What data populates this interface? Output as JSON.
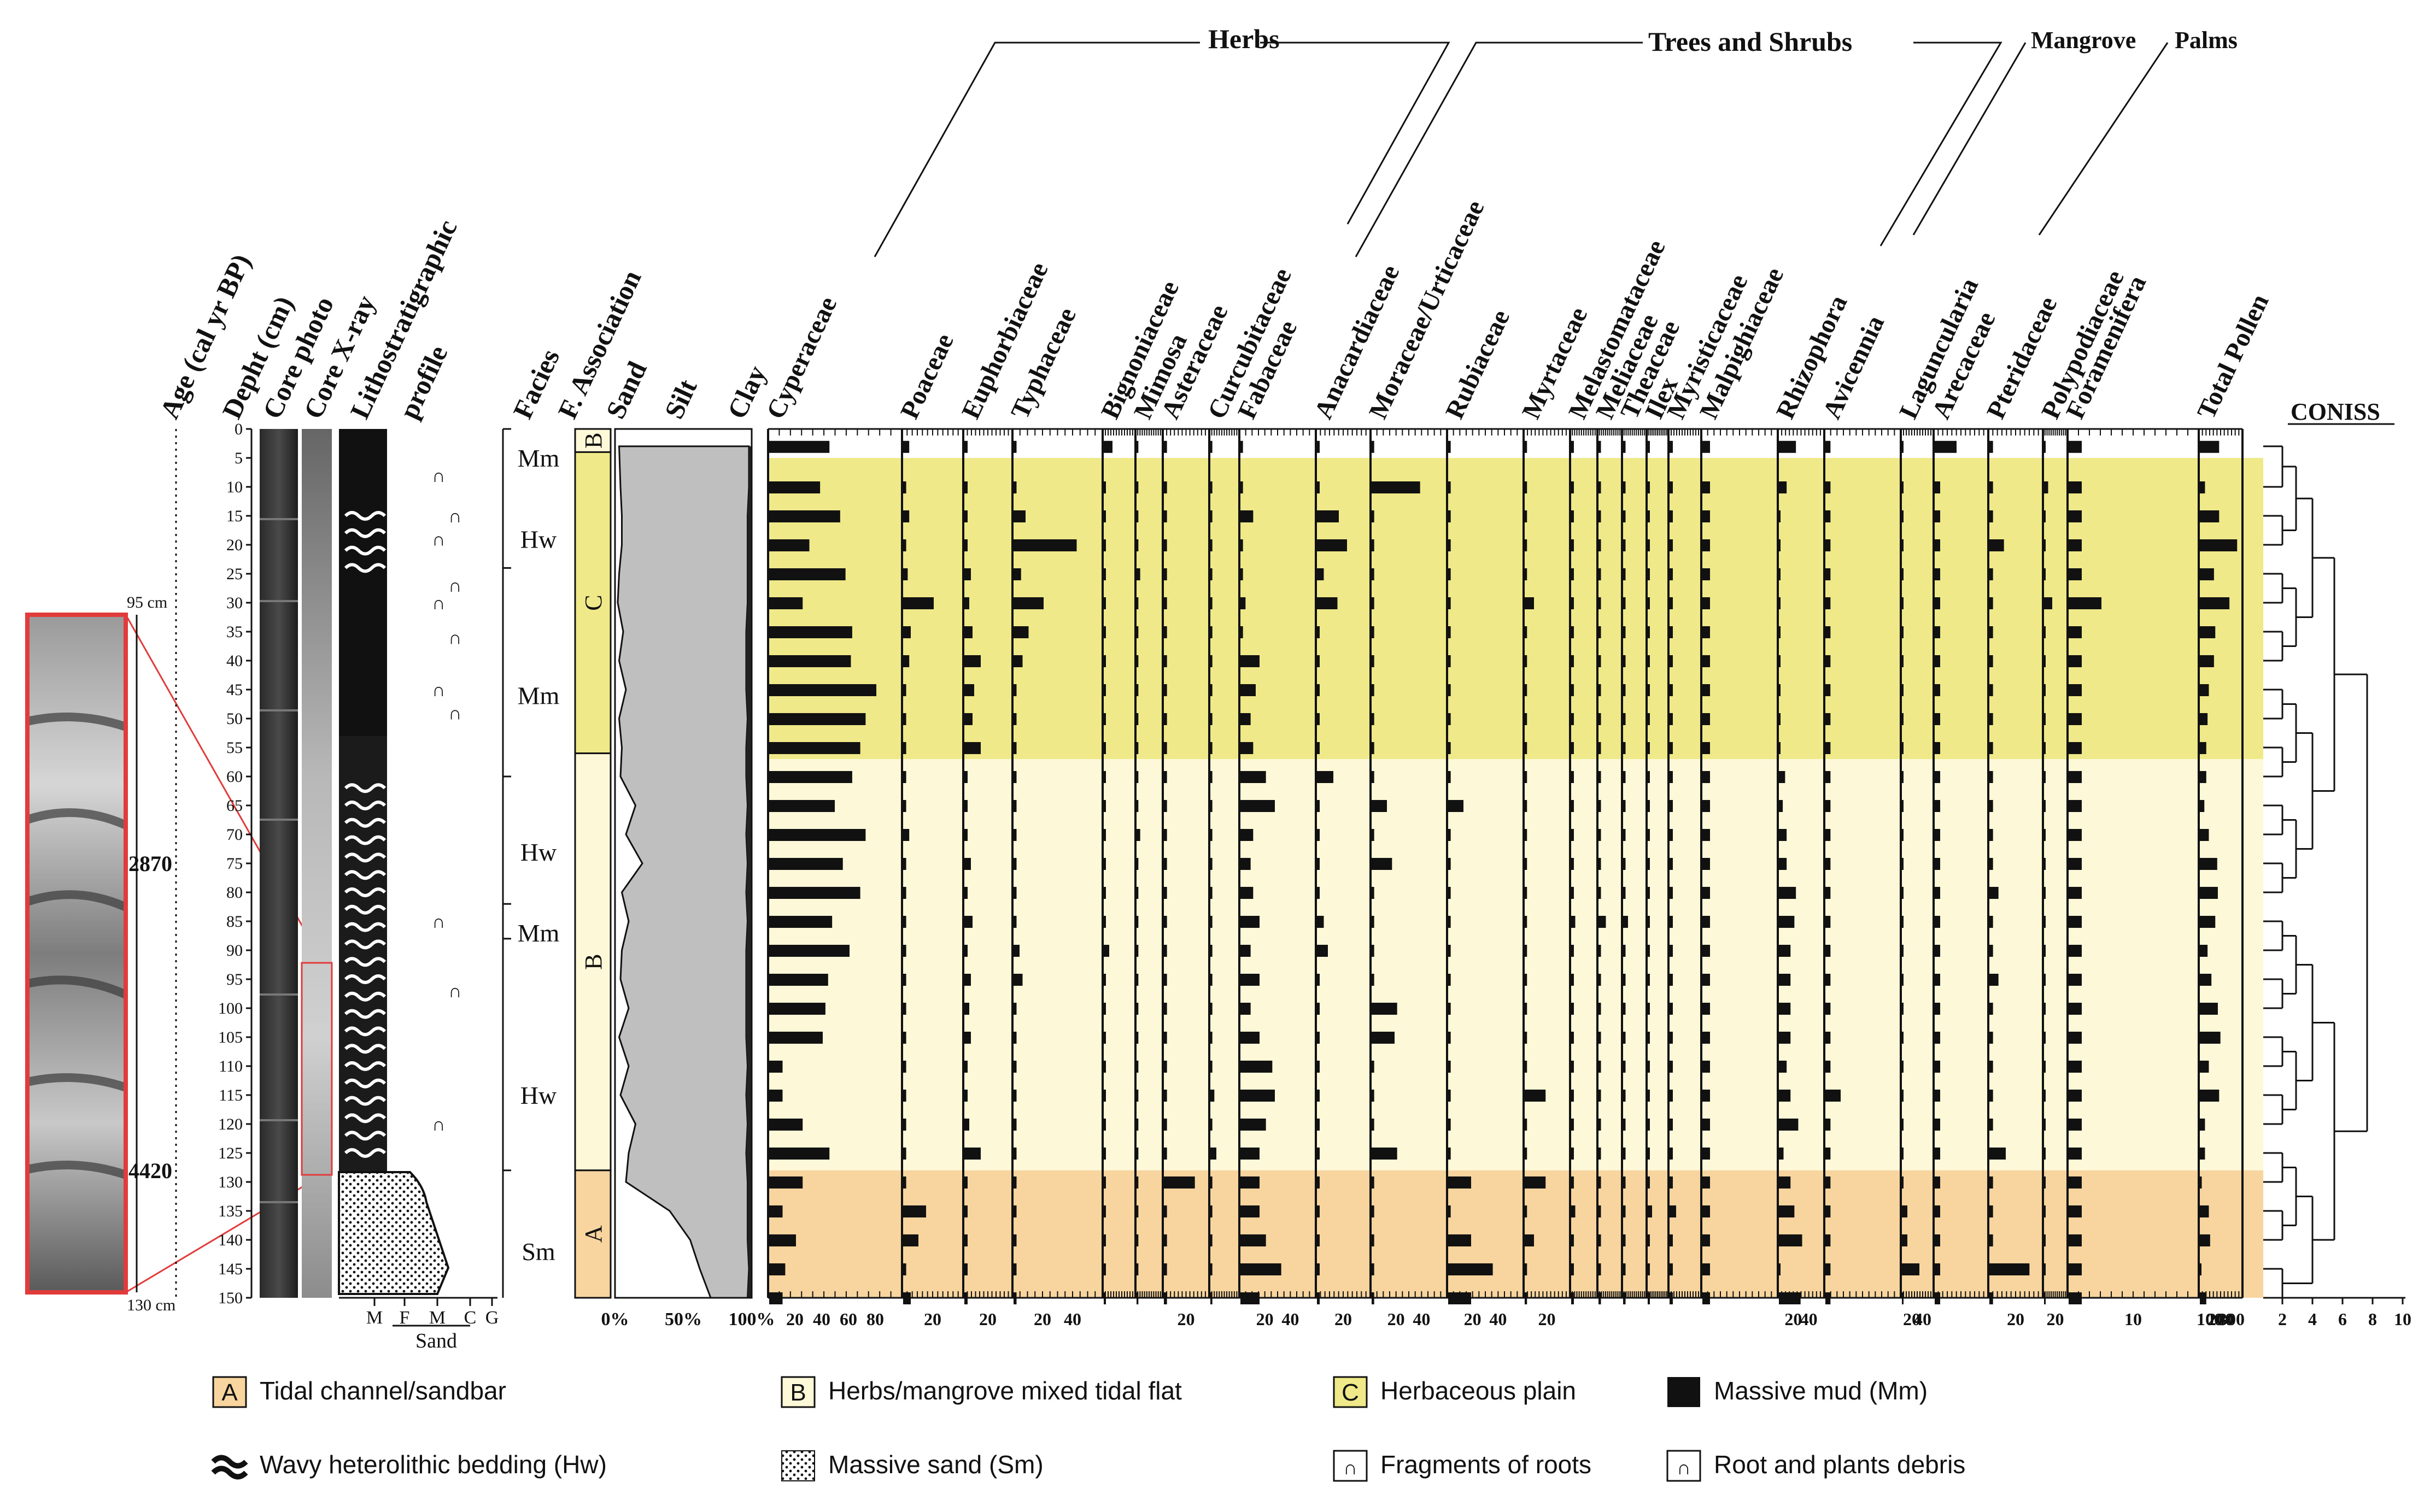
{
  "groups": {
    "herbs": "Herbs",
    "trees": "Trees and Shrubs",
    "mangrove": "Mangrove",
    "palms": "Palms"
  },
  "headers": {
    "age": "Age (cal yr BP)",
    "depth": "Depht (cm)",
    "photo": "Core photo",
    "xray": "Core X-ray",
    "litho1": "Lithostratigraphic",
    "litho2": "profile",
    "facies": "Facies",
    "fassoc": "F. Association",
    "sand": "Sand",
    "silt": "Silt",
    "clay": "Clay",
    "coniss": "CONISS"
  },
  "depth_ticks": [
    "0",
    "5",
    "10",
    "15",
    "20",
    "25",
    "30",
    "35",
    "40",
    "45",
    "50",
    "55",
    "60",
    "65",
    "70",
    "75",
    "80",
    "85",
    "90",
    "95",
    "100",
    "105",
    "110",
    "115",
    "120",
    "125",
    "130",
    "135",
    "140",
    "145",
    "150"
  ],
  "ages": [
    {
      "label": "2870",
      "depth": 75
    },
    {
      "label": "4420",
      "depth": 128
    }
  ],
  "zoom": {
    "top": "95 cm",
    "bottom": "130 cm"
  },
  "grain": {
    "ticks": [
      "M",
      "F",
      "M",
      "C",
      "G"
    ],
    "label": "Sand"
  },
  "facies": [
    {
      "label": "Mm",
      "depth": 5
    },
    {
      "label": "Hw",
      "depth": 19
    },
    {
      "label": "Mm",
      "depth": 46
    },
    {
      "label": "Hw",
      "depth": 73
    },
    {
      "label": "Mm",
      "depth": 87
    },
    {
      "label": "Hw",
      "depth": 115
    },
    {
      "label": "Sm",
      "depth": 142
    }
  ],
  "assoc": [
    {
      "label": "B",
      "from": 0,
      "to": 4
    },
    {
      "label": "C",
      "from": 4,
      "to": 56
    },
    {
      "label": "B",
      "from": 56,
      "to": 128
    },
    {
      "label": "A",
      "from": 128,
      "to": 150
    }
  ],
  "texture_ticks": [
    "0%",
    "50%",
    "100%"
  ],
  "zones": [
    {
      "label": "C",
      "from": 5,
      "to": 57,
      "color": "#efe98a"
    },
    {
      "label": "B",
      "from": 57,
      "to": 128,
      "color": "#fdf8d7"
    },
    {
      "label": "A",
      "from": 128,
      "to": 150,
      "color": "#f8d49e"
    }
  ],
  "coniss_ticks": [
    "2",
    "4",
    "6",
    "8",
    "10"
  ],
  "legend": [
    {
      "key": "A",
      "text": "Tidal channel/sandbar"
    },
    {
      "key": "B",
      "text": "Herbs/mangrove mixed tidal flat"
    },
    {
      "key": "C",
      "text": "Herbaceous plain"
    },
    {
      "key": "mm",
      "text": "Massive mud (Mm)"
    },
    {
      "key": "hw",
      "text": "Wavy heterolithic bedding (Hw)"
    },
    {
      "key": "sm",
      "text": "Massive sand (Sm)"
    },
    {
      "key": "roots",
      "text": "Fragments of roots"
    },
    {
      "key": "debris",
      "text": "Root and plants debris"
    }
  ],
  "chart_data": {
    "type": "pollen-diagram",
    "depths": [
      3,
      10,
      15,
      20,
      25,
      30,
      35,
      40,
      45,
      50,
      55,
      60,
      65,
      70,
      75,
      80,
      85,
      90,
      95,
      100,
      105,
      110,
      115,
      120,
      125,
      130,
      135,
      140,
      145,
      150
    ],
    "taxa": [
      {
        "name": "Cyperaceae",
        "group": "Herbs",
        "ticks": [
          "20",
          "40",
          "60",
          "80"
        ],
        "max": 100,
        "values": [
          45,
          38,
          53,
          30,
          57,
          25,
          62,
          61,
          80,
          72,
          68,
          62,
          49,
          72,
          55,
          68,
          47,
          60,
          44,
          42,
          40,
          10,
          10,
          25,
          45,
          25,
          10,
          20,
          12,
          10
        ]
      },
      {
        "name": "Poaceae",
        "group": "Herbs",
        "ticks": [
          "20"
        ],
        "max": 40,
        "values": [
          4,
          2,
          4,
          2,
          3,
          20,
          5,
          4,
          2,
          2,
          2,
          2,
          2,
          4,
          2,
          2,
          2,
          2,
          2,
          2,
          2,
          2,
          2,
          2,
          2,
          2,
          15,
          10,
          2,
          5
        ]
      },
      {
        "name": "Euphorbiaceae",
        "group": "Trees and Shrubs",
        "ticks": [
          "20"
        ],
        "max": 30,
        "values": [
          2,
          2,
          2,
          2,
          4,
          3,
          5,
          10,
          6,
          5,
          10,
          2,
          2,
          2,
          4,
          2,
          5,
          2,
          4,
          3,
          4,
          2,
          2,
          3,
          10,
          2,
          2,
          2,
          2,
          2
        ]
      },
      {
        "name": "Typhaceae",
        "group": "Herbs",
        "ticks": [
          "20",
          "40"
        ],
        "max": 60,
        "values": [
          2,
          2,
          8,
          42,
          5,
          20,
          10,
          6,
          2,
          2,
          2,
          2,
          2,
          2,
          2,
          2,
          2,
          4,
          6,
          2,
          2,
          2,
          2,
          2,
          2,
          2,
          2,
          2,
          2,
          2
        ]
      },
      {
        "name": "Bignoniaceae",
        "group": "Trees and Shrubs",
        "ticks": [],
        "max": 30,
        "values": [
          8,
          2,
          2,
          2,
          2,
          2,
          2,
          2,
          2,
          2,
          2,
          2,
          2,
          2,
          2,
          2,
          2,
          5,
          2,
          2,
          2,
          2,
          2,
          2,
          2,
          2,
          2,
          2,
          2,
          2
        ]
      },
      {
        "name": "Mimosa",
        "group": "Trees and Shrubs",
        "ticks": [],
        "max": 30,
        "values": [
          2,
          2,
          2,
          2,
          4,
          2,
          2,
          2,
          2,
          2,
          2,
          2,
          2,
          4,
          2,
          2,
          2,
          2,
          2,
          2,
          2,
          2,
          2,
          2,
          2,
          2,
          2,
          2,
          2,
          2
        ]
      },
      {
        "name": "Asteraceae",
        "group": "Herbs",
        "ticks": [
          "20"
        ],
        "max": 30,
        "values": [
          2,
          2,
          2,
          2,
          2,
          2,
          2,
          2,
          2,
          2,
          2,
          2,
          2,
          2,
          2,
          2,
          2,
          2,
          2,
          2,
          2,
          2,
          2,
          2,
          2,
          20,
          2,
          2,
          2,
          2
        ]
      },
      {
        "name": "Curcubitaceae",
        "group": "Herbs",
        "ticks": [],
        "max": 30,
        "values": [
          2,
          2,
          2,
          2,
          2,
          2,
          2,
          2,
          2,
          2,
          2,
          2,
          2,
          2,
          2,
          2,
          2,
          2,
          2,
          2,
          2,
          2,
          4,
          2,
          6,
          2,
          2,
          2,
          2,
          2
        ]
      },
      {
        "name": "Fabaceae",
        "group": "Trees and Shrubs",
        "ticks": [
          "20",
          "40"
        ],
        "max": 60,
        "values": [
          2,
          2,
          10,
          2,
          2,
          4,
          2,
          15,
          12,
          8,
          10,
          20,
          27,
          10,
          8,
          10,
          15,
          8,
          15,
          8,
          15,
          25,
          27,
          20,
          15,
          15,
          15,
          20,
          32,
          15
        ]
      },
      {
        "name": "Anacardiaceae",
        "group": "Trees and Shrubs",
        "ticks": [
          "20"
        ],
        "max": 40,
        "values": [
          2,
          2,
          16,
          22,
          5,
          15,
          2,
          2,
          2,
          2,
          2,
          12,
          2,
          2,
          2,
          2,
          5,
          8,
          2,
          2,
          2,
          2,
          2,
          2,
          2,
          2,
          2,
          2,
          2,
          2
        ]
      },
      {
        "name": "Moraceae/Urticaceae",
        "group": "Trees and Shrubs",
        "ticks": [
          "20",
          "40"
        ],
        "max": 60,
        "values": [
          2,
          38,
          2,
          2,
          2,
          2,
          2,
          2,
          2,
          2,
          2,
          2,
          12,
          2,
          16,
          2,
          2,
          2,
          2,
          20,
          18,
          2,
          2,
          2,
          20,
          2,
          2,
          2,
          2,
          2
        ]
      },
      {
        "name": "Rubiaceae",
        "group": "Trees and Shrubs",
        "ticks": [
          "20",
          "40"
        ],
        "max": 60,
        "values": [
          2,
          2,
          2,
          2,
          2,
          2,
          2,
          2,
          2,
          2,
          2,
          2,
          12,
          2,
          2,
          2,
          2,
          2,
          2,
          2,
          2,
          2,
          2,
          2,
          2,
          18,
          2,
          18,
          35,
          18
        ]
      },
      {
        "name": "Myrtaceae",
        "group": "Trees and Shrubs",
        "ticks": [
          "20"
        ],
        "max": 40,
        "values": [
          2,
          2,
          2,
          2,
          2,
          8,
          2,
          2,
          2,
          2,
          2,
          2,
          2,
          2,
          2,
          2,
          2,
          2,
          2,
          2,
          2,
          2,
          18,
          2,
          2,
          18,
          2,
          8,
          2,
          2
        ]
      },
      {
        "name": "Melastomataceae",
        "group": "Trees and Shrubs",
        "ticks": [],
        "max": 20,
        "values": [
          2,
          2,
          2,
          2,
          2,
          2,
          2,
          2,
          2,
          2,
          2,
          2,
          2,
          2,
          2,
          2,
          3,
          2,
          2,
          2,
          2,
          2,
          2,
          2,
          2,
          2,
          3,
          2,
          2,
          2
        ]
      },
      {
        "name": "Meliaceae",
        "group": "Trees and Shrubs",
        "ticks": [],
        "max": 20,
        "values": [
          2,
          2,
          2,
          2,
          2,
          2,
          2,
          2,
          2,
          2,
          2,
          2,
          2,
          2,
          2,
          2,
          6,
          2,
          2,
          2,
          2,
          2,
          2,
          2,
          2,
          2,
          2,
          2,
          2,
          2
        ]
      },
      {
        "name": "Theaceae",
        "group": "Trees and Shrubs",
        "ticks": [],
        "max": 20,
        "values": [
          2,
          2,
          2,
          2,
          2,
          2,
          2,
          2,
          2,
          2,
          2,
          2,
          2,
          2,
          2,
          2,
          4,
          2,
          2,
          2,
          2,
          2,
          2,
          2,
          2,
          2,
          2,
          2,
          2,
          2
        ]
      },
      {
        "name": "Ilex",
        "group": "Trees and Shrubs",
        "ticks": [],
        "max": 20,
        "values": [
          2,
          2,
          2,
          2,
          2,
          2,
          2,
          2,
          2,
          2,
          2,
          2,
          2,
          2,
          2,
          2,
          2,
          2,
          2,
          2,
          2,
          2,
          2,
          2,
          2,
          2,
          4,
          2,
          2,
          2
        ]
      },
      {
        "name": "Myristicaceae",
        "group": "Trees and Shrubs",
        "ticks": [],
        "max": 20,
        "values": [
          2,
          2,
          2,
          2,
          2,
          2,
          2,
          2,
          2,
          2,
          2,
          2,
          2,
          2,
          2,
          2,
          2,
          2,
          2,
          2,
          2,
          2,
          2,
          2,
          2,
          2,
          4,
          2,
          2,
          2
        ]
      },
      {
        "name": "Malpighiaceae",
        "group": "Trees and Shrubs",
        "ticks": [],
        "max": 20,
        "values": [
          2,
          2,
          2,
          2,
          2,
          2,
          2,
          2,
          2,
          2,
          2,
          2,
          2,
          2,
          2,
          2,
          2,
          2,
          2,
          2,
          2,
          2,
          2,
          2,
          2,
          2,
          2,
          2,
          2,
          2
        ]
      },
      {
        "name": "Rhizophora",
        "group": "Mangrove",
        "ticks": [
          "20",
          "40"
        ],
        "max": 60,
        "values": [
          22,
          10,
          2,
          2,
          2,
          2,
          2,
          2,
          2,
          2,
          2,
          8,
          5,
          10,
          10,
          22,
          20,
          15,
          15,
          15,
          15,
          10,
          15,
          25,
          6,
          15,
          20,
          30,
          2,
          28
        ]
      },
      {
        "name": "Avicennia",
        "group": "Mangrove",
        "ticks": [],
        "max": 30,
        "values": [
          2,
          2,
          2,
          2,
          2,
          2,
          2,
          2,
          2,
          2,
          2,
          2,
          2,
          2,
          2,
          2,
          2,
          2,
          2,
          2,
          2,
          2,
          6,
          2,
          2,
          2,
          2,
          2,
          2,
          2
        ]
      },
      {
        "name": "Laguncularia",
        "group": "Mangrove",
        "ticks": [
          "20",
          "40"
        ],
        "max": 60,
        "values": [
          2,
          2,
          2,
          2,
          2,
          2,
          2,
          2,
          2,
          2,
          2,
          2,
          2,
          2,
          2,
          2,
          2,
          2,
          2,
          2,
          2,
          2,
          2,
          2,
          2,
          2,
          10,
          10,
          32,
          2
        ]
      },
      {
        "name": "Arecaceae",
        "group": "Palms",
        "ticks": [],
        "max": 20,
        "values": [
          8,
          2,
          2,
          2,
          2,
          2,
          2,
          2,
          2,
          2,
          2,
          2,
          2,
          2,
          2,
          2,
          2,
          2,
          2,
          2,
          2,
          2,
          2,
          2,
          2,
          2,
          2,
          2,
          2,
          2
        ]
      },
      {
        "name": "Pteridaceae",
        "group": "Trees and Shrubs",
        "ticks": [
          "20"
        ],
        "max": 30,
        "values": [
          2,
          2,
          2,
          8,
          2,
          2,
          2,
          2,
          2,
          2,
          2,
          2,
          2,
          2,
          2,
          5,
          2,
          2,
          5,
          2,
          2,
          2,
          2,
          2,
          9,
          2,
          2,
          2,
          22,
          2
        ]
      },
      {
        "name": "Polypodiaceae",
        "group": "Trees and Shrubs",
        "ticks": [
          "20"
        ],
        "max": 30,
        "values": [
          2,
          5,
          2,
          2,
          2,
          10,
          2,
          2,
          2,
          2,
          2,
          2,
          2,
          2,
          2,
          2,
          2,
          2,
          2,
          2,
          2,
          2,
          2,
          2,
          2,
          2,
          2,
          2,
          2,
          2
        ]
      },
      {
        "name": "Foramenifera",
        "group": "Trees and Shrubs",
        "ticks": [
          "10"
        ],
        "max": 20,
        "values": [
          2,
          2,
          2,
          2,
          2,
          5,
          2,
          2,
          2,
          2,
          2,
          2,
          2,
          2,
          2,
          2,
          2,
          2,
          2,
          2,
          2,
          2,
          2,
          2,
          2,
          2,
          2,
          2,
          2,
          2
        ]
      },
      {
        "name": "Total Pollen",
        "group": "",
        "ticks": [
          "100",
          "200",
          "300"
        ],
        "max": 340,
        "values": [
          150,
          40,
          150,
          290,
          110,
          230,
          120,
          110,
          70,
          60,
          50,
          50,
          35,
          70,
          135,
          140,
          120,
          60,
          90,
          140,
          160,
          70,
          150,
          40,
          40,
          15,
          70,
          80,
          10,
          50
        ]
      }
    ],
    "texture": {
      "sand_pct": [
        3,
        4,
        5,
        5,
        3,
        2,
        6,
        3,
        8,
        3,
        5,
        4,
        15,
        8,
        20,
        5,
        10,
        5,
        4,
        10,
        3,
        10,
        4,
        15,
        10,
        8,
        40,
        55,
        62,
        70
      ],
      "clay_pct": [
        98,
        98,
        97,
        97,
        97,
        97,
        96,
        96,
        96,
        97,
        96,
        96,
        97,
        96,
        97,
        96,
        97,
        96,
        96,
        96,
        96,
        97,
        96,
        97,
        96,
        97,
        97,
        97,
        98,
        97
      ]
    }
  }
}
